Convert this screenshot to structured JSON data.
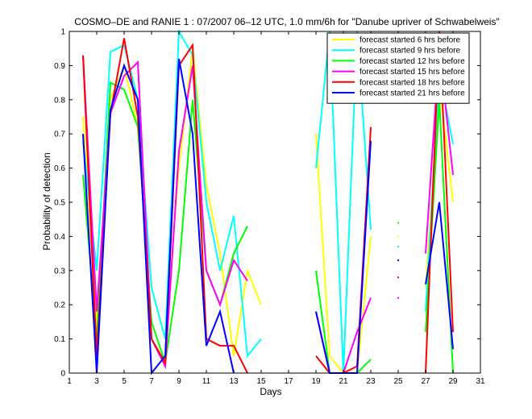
{
  "chart_data": {
    "type": "line",
    "title": "COSMO–DE and RANIE 1 : 07/2007 06–12 UTC, 1.0 mm/6h for \"Danube upriver of Schwabelweis\"",
    "xlabel": "Days",
    "ylabel": "Probability of detection",
    "xlim": [
      1,
      31
    ],
    "ylim": [
      0,
      1
    ],
    "xticks": [
      1,
      3,
      5,
      7,
      9,
      11,
      13,
      15,
      17,
      19,
      21,
      23,
      25,
      27,
      29,
      31
    ],
    "yticks": [
      0,
      0.1,
      0.2,
      0.3,
      0.4,
      0.5,
      0.6,
      0.7,
      0.8,
      0.9,
      1
    ],
    "grid": false,
    "legend_position": "top-right",
    "series": [
      {
        "name": "forecast started 6 hrs before",
        "color": "#ffff00",
        "values": [
          null,
          0.75,
          0.15,
          0.8,
          0.9,
          0.72,
          0.25,
          0.1,
          0.6,
          0.95,
          0.55,
          0.35,
          0.05,
          0.3,
          0.2,
          null,
          null,
          null,
          0.7,
          0.05,
          0.0,
          0.0,
          0.4,
          null,
          0.4,
          null,
          0.25,
          0.85,
          0.5,
          null,
          null
        ]
      },
      {
        "name": "forecast started 9 hrs before",
        "color": "#00ffff",
        "values": [
          null,
          0.68,
          0.3,
          0.94,
          0.96,
          0.8,
          0.25,
          0.1,
          1.0,
          0.93,
          0.5,
          0.3,
          0.46,
          0.05,
          0.1,
          null,
          null,
          null,
          0.6,
          1.0,
          0.0,
          1.0,
          0.42,
          null,
          0.37,
          null,
          0.18,
          0.88,
          0.67,
          null,
          null
        ]
      },
      {
        "name": "forecast started 12 hrs before",
        "color": "#00ff00",
        "values": [
          null,
          0.58,
          0.1,
          0.85,
          0.83,
          0.72,
          0.15,
          0.03,
          0.3,
          0.8,
          0.3,
          0.2,
          0.35,
          0.43,
          null,
          null,
          null,
          null,
          0.3,
          0.0,
          0.0,
          0.0,
          0.04,
          null,
          0.44,
          null,
          0.12,
          0.8,
          0.0,
          null,
          null
        ]
      },
      {
        "name": "forecast started 15 hrs before",
        "color": "#ff00ff",
        "values": [
          null,
          0.93,
          0.18,
          0.76,
          0.87,
          0.91,
          0.1,
          0.02,
          0.65,
          0.9,
          0.3,
          0.2,
          0.33,
          0.27,
          null,
          null,
          null,
          null,
          0.18,
          0.0,
          0.0,
          0.12,
          0.22,
          null,
          0.22,
          null,
          0.35,
          0.95,
          0.58,
          null,
          null
        ]
      },
      {
        "name": "forecast started 18 hrs before",
        "color": "#ff0000",
        "values": [
          null,
          0.93,
          0.05,
          0.76,
          0.98,
          0.75,
          0.1,
          0.03,
          0.9,
          0.96,
          0.1,
          0.08,
          0.08,
          0.0,
          null,
          null,
          null,
          null,
          0.05,
          0.0,
          0.0,
          0.02,
          0.72,
          null,
          0.28,
          null,
          0.0,
          1.0,
          0.12,
          null,
          null
        ]
      },
      {
        "name": "forecast started 21 hrs before",
        "color": "#0000ff",
        "values": [
          null,
          0.7,
          0.0,
          0.77,
          0.9,
          0.8,
          0.0,
          0.05,
          0.92,
          0.7,
          0.08,
          0.18,
          0.0,
          null,
          null,
          null,
          null,
          null,
          0.18,
          0.0,
          0.0,
          0.0,
          0.68,
          null,
          0.33,
          null,
          0.26,
          0.5,
          0.07,
          null,
          null
        ]
      }
    ]
  }
}
